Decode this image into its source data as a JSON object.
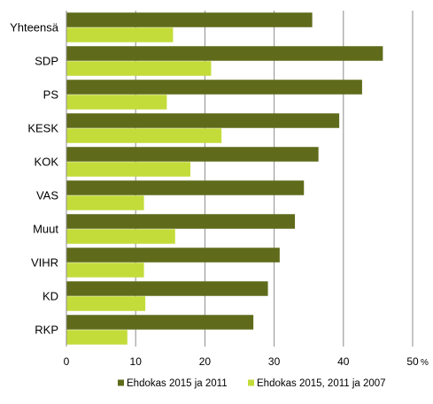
{
  "chart_data": {
    "type": "bar",
    "orientation": "horizontal",
    "categories": [
      "Yhteensä",
      "SDP",
      "PS",
      "KESK",
      "KOK",
      "VAS",
      "Muut",
      "VIHR",
      "KD",
      "RKP"
    ],
    "series": [
      {
        "name": "Ehdokas 2015 ja 2011",
        "color": "#5f6b1a",
        "values": [
          35.5,
          45.7,
          42.7,
          39.4,
          36.4,
          34.3,
          33.0,
          30.8,
          29.1,
          27.0
        ]
      },
      {
        "name": "Ehdokas 2015, 2011 ja 2007",
        "color": "#c3dc3a",
        "values": [
          15.4,
          20.9,
          14.5,
          22.4,
          17.9,
          11.2,
          15.7,
          11.2,
          11.4,
          8.8
        ]
      }
    ],
    "xlim": [
      0,
      50
    ],
    "xticks": [
      0,
      10,
      20,
      30,
      40,
      50
    ],
    "xunit": "%",
    "grid": true,
    "legend_position": "bottom"
  }
}
